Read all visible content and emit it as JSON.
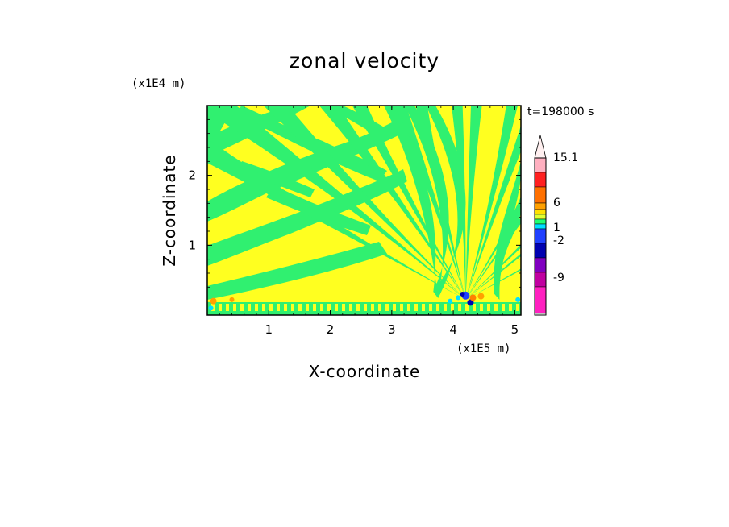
{
  "chart_data": {
    "type": "heatmap",
    "title": "zonal velocity",
    "xlabel": "X-coordinate",
    "ylabel": "Z-coordinate",
    "x_unit_label": "(x1E5 m)",
    "y_unit_label": "(x1E4 m)",
    "time_label": "t=198000 s",
    "xlim": [
      0,
      5.1
    ],
    "ylim": [
      0,
      3.0
    ],
    "x_ticks": [
      "1",
      "2",
      "3",
      "4",
      "5"
    ],
    "x_tick_values": [
      1,
      2,
      3,
      4,
      5
    ],
    "y_ticks": [
      "1",
      "2"
    ],
    "y_tick_values": [
      1,
      2
    ],
    "colorbar": {
      "labels": [
        "15.1",
        "6",
        "1",
        "-2",
        "-9"
      ],
      "colors": [
        "#ffb0c0",
        "#ff2020",
        "#ff7000",
        "#ffa000",
        "#ffe000",
        "#e0ff30",
        "#20ff70",
        "#00e0ff",
        "#2040ff",
        "#0000b0",
        "#8000c0",
        "#c000a0",
        "#ff20c0"
      ],
      "extend_top_color": "#fff0f0"
    },
    "dominant_colors": {
      "positive_small": "#ffff20",
      "negative_small": "#30f070",
      "strong_negative": "#1020e0",
      "strong_positive": "#ff8000"
    }
  }
}
